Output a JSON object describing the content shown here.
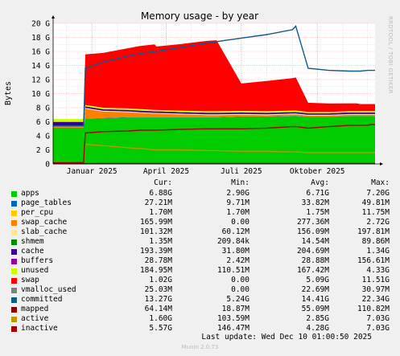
{
  "chart_data": {
    "type": "area",
    "title": "Memory usage - by year",
    "ylabel": "Bytes",
    "xlim": [
      "2024-11-15",
      "2025-12-10"
    ],
    "ylim": [
      0,
      20
    ],
    "yunit": "G",
    "yticks": [
      "0",
      "2 G",
      "4 G",
      "6 G",
      "8 G",
      "10 G",
      "12 G",
      "14 G",
      "16 G",
      "18 G",
      "20 G"
    ],
    "xticks": [
      {
        "date": "2025-01-01",
        "label": "Januar 2025"
      },
      {
        "date": "2025-04-01",
        "label": "April 2025"
      },
      {
        "date": "2025-07-01",
        "label": "Juli 2025"
      },
      {
        "date": "2025-10-01",
        "label": "Oktober 2025"
      }
    ],
    "grid": true,
    "x": [
      "2024-11-15",
      "2024-12-01",
      "2024-12-22",
      "2024-12-24",
      "2025-01-15",
      "2025-02-15",
      "2025-03-01",
      "2025-03-18",
      "2025-03-20",
      "2025-04-15",
      "2025-05-20",
      "2025-06-01",
      "2025-07-01",
      "2025-08-01",
      "2025-09-01",
      "2025-09-05",
      "2025-09-20",
      "2025-10-15",
      "2025-11-10",
      "2025-11-18",
      "2025-11-22",
      "2025-12-01",
      "2025-12-05",
      "2025-12-10"
    ],
    "series": [
      {
        "name": "apps",
        "color": "#00cc00",
        "values": [
          5.1,
          5.1,
          5.1,
          6.4,
          6.5,
          6.6,
          6.6,
          6.6,
          6.6,
          6.6,
          6.6,
          6.6,
          6.7,
          6.7,
          6.8,
          6.8,
          6.7,
          6.7,
          6.8,
          6.8,
          6.8,
          6.8,
          6.8,
          6.8
        ]
      },
      {
        "name": "page_tables",
        "color": "#0066b3",
        "values": [
          0.05,
          0.05,
          0.05,
          0.05,
          0.05,
          0.05,
          0.05,
          0.05,
          0.05,
          0.05,
          0.05,
          0.05,
          0.05,
          0.05,
          0.05,
          0.05,
          0.03,
          0.03,
          0.03,
          0.03,
          0.03,
          0.03,
          0.03,
          0.03
        ]
      },
      {
        "name": "per_cpu",
        "color": "#ffcc00",
        "values": [
          0.002,
          0.002,
          0.002,
          0.002,
          0.002,
          0.002,
          0.002,
          0.002,
          0.002,
          0.002,
          0.002,
          0.002,
          0.002,
          0.002,
          0.002,
          0.002,
          0.002,
          0.002,
          0.002,
          0.002,
          0.002,
          0.002,
          0.002,
          0.002
        ]
      },
      {
        "name": "swap_cache",
        "color": "#ff8000",
        "values": [
          0.2,
          0.2,
          0.2,
          1.4,
          0.9,
          0.7,
          0.6,
          0.5,
          0.5,
          0.4,
          0.3,
          0.3,
          0.25,
          0.2,
          0.2,
          0.2,
          0.15,
          0.15,
          0.16,
          0.16,
          0.16,
          0.16,
          0.16,
          0.16
        ]
      },
      {
        "name": "slab_cache",
        "color": "#ffe6a0",
        "values": [
          0.1,
          0.1,
          0.1,
          0.1,
          0.1,
          0.1,
          0.1,
          0.1,
          0.1,
          0.1,
          0.1,
          0.1,
          0.1,
          0.1,
          0.1,
          0.1,
          0.1,
          0.1,
          0.1,
          0.1,
          0.1,
          0.1,
          0.1,
          0.1
        ]
      },
      {
        "name": "shmem",
        "color": "#008f00",
        "values": [
          0.01,
          0.01,
          0.01,
          0.01,
          0.01,
          0.01,
          0.01,
          0.01,
          0.01,
          0.01,
          0.01,
          0.01,
          0.01,
          0.01,
          0.01,
          0.01,
          0.01,
          0.01,
          0.01,
          0.01,
          0.01,
          0.01,
          0.01,
          0.01
        ]
      },
      {
        "name": "cache",
        "color": "#330099",
        "values": [
          0.5,
          0.5,
          0.5,
          0.2,
          0.2,
          0.2,
          0.2,
          0.2,
          0.2,
          0.2,
          0.2,
          0.2,
          0.2,
          0.2,
          0.2,
          0.2,
          0.2,
          0.2,
          0.2,
          0.2,
          0.2,
          0.2,
          0.2,
          0.2
        ]
      },
      {
        "name": "buffers",
        "color": "#990099",
        "values": [
          0.03,
          0.03,
          0.03,
          0.03,
          0.03,
          0.03,
          0.03,
          0.03,
          0.03,
          0.03,
          0.03,
          0.03,
          0.03,
          0.03,
          0.03,
          0.03,
          0.03,
          0.03,
          0.03,
          0.03,
          0.03,
          0.03,
          0.03,
          0.03
        ]
      },
      {
        "name": "unused",
        "color": "#ccff00",
        "values": [
          0.4,
          0.4,
          0.4,
          0.2,
          0.2,
          0.2,
          0.2,
          0.2,
          0.2,
          0.2,
          0.2,
          0.2,
          0.2,
          0.2,
          0.2,
          0.2,
          0.18,
          0.18,
          0.18,
          0.18,
          0.18,
          0.18,
          0.18,
          0.18
        ]
      },
      {
        "name": "swap",
        "color": "#ff0000",
        "values": [
          0.0,
          0.0,
          0.0,
          7.2,
          7.8,
          8.6,
          9.0,
          9.3,
          9.0,
          9.4,
          10.0,
          10.1,
          3.9,
          4.3,
          4.6,
          4.7,
          1.3,
          1.2,
          1.1,
          1.1,
          1.0,
          1.0,
          1.0,
          1.0
        ]
      }
    ],
    "lines": [
      {
        "name": "vmalloc_used",
        "color": "#808080",
        "values": [
          0.03,
          0.03,
          0.03,
          0.03,
          0.03,
          0.03,
          0.03,
          0.03,
          0.03,
          0.03,
          0.03,
          0.03,
          0.03,
          0.03,
          0.03,
          0.03,
          0.03,
          0.03,
          0.03,
          0.03,
          0.03,
          0.03,
          0.03,
          0.03
        ]
      },
      {
        "name": "committed",
        "color": "#0c5a8c",
        "values": [
          5.4,
          5.4,
          5.4,
          13.6,
          14.5,
          15.4,
          15.7,
          16.0,
          16.0,
          16.5,
          17.2,
          17.4,
          17.9,
          18.4,
          19.1,
          19.6,
          13.6,
          13.3,
          13.2,
          13.2,
          13.2,
          13.3,
          13.3,
          13.3
        ]
      },
      {
        "name": "mapped",
        "color": "#880000",
        "values": [
          0.03,
          0.03,
          0.03,
          0.05,
          0.06,
          0.06,
          0.06,
          0.06,
          0.06,
          0.06,
          0.06,
          0.06,
          0.06,
          0.06,
          0.06,
          0.06,
          0.06,
          0.06,
          0.06,
          0.06,
          0.06,
          0.06,
          0.06,
          0.06
        ]
      },
      {
        "name": "active",
        "color": "#b59b00",
        "values": [
          0.3,
          0.3,
          0.2,
          2.8,
          2.6,
          2.3,
          2.2,
          2.0,
          2.0,
          2.0,
          1.9,
          1.9,
          1.8,
          1.8,
          1.7,
          1.7,
          1.6,
          1.6,
          1.6,
          1.6,
          1.6,
          1.6,
          1.6,
          1.6
        ]
      },
      {
        "name": "inactive",
        "color": "#a00000",
        "values": [
          0.2,
          0.2,
          0.2,
          4.4,
          4.6,
          4.7,
          4.8,
          4.8,
          4.8,
          4.9,
          5.0,
          5.0,
          5.0,
          5.1,
          5.3,
          5.3,
          5.1,
          5.3,
          5.5,
          5.5,
          5.5,
          5.5,
          5.6,
          5.6
        ]
      }
    ]
  },
  "legend": {
    "headers": {
      "cur": "Cur:",
      "min": "Min:",
      "avg": "Avg:",
      "max": "Max:"
    },
    "rows": [
      {
        "name": "apps",
        "color": "#00cc00",
        "cur": "6.88G",
        "min": "2.90G",
        "avg": "6.71G",
        "max": "7.20G"
      },
      {
        "name": "page_tables",
        "color": "#0066b3",
        "cur": "27.21M",
        "min": "9.71M",
        "avg": "33.82M",
        "max": "49.81M"
      },
      {
        "name": "per_cpu",
        "color": "#ffcc00",
        "cur": "1.70M",
        "min": "1.70M",
        "avg": "1.75M",
        "max": "11.75M"
      },
      {
        "name": "swap_cache",
        "color": "#ff8000",
        "cur": "165.99M",
        "min": "0.00",
        "avg": "277.36M",
        "max": "2.72G"
      },
      {
        "name": "slab_cache",
        "color": "#ffe6a0",
        "cur": "101.32M",
        "min": "60.12M",
        "avg": "156.09M",
        "max": "197.81M"
      },
      {
        "name": "shmem",
        "color": "#008f00",
        "cur": "1.35M",
        "min": "209.84k",
        "avg": "14.54M",
        "max": "89.86M"
      },
      {
        "name": "cache",
        "color": "#330099",
        "cur": "193.39M",
        "min": "31.80M",
        "avg": "204.69M",
        "max": "1.34G"
      },
      {
        "name": "buffers",
        "color": "#990099",
        "cur": "28.78M",
        "min": "2.42M",
        "avg": "28.88M",
        "max": "156.61M"
      },
      {
        "name": "unused",
        "color": "#ccff00",
        "cur": "184.95M",
        "min": "110.51M",
        "avg": "167.42M",
        "max": "4.33G"
      },
      {
        "name": "swap",
        "color": "#ff0000",
        "cur": "1.02G",
        "min": "0.00",
        "avg": "5.09G",
        "max": "11.51G"
      },
      {
        "name": "vmalloc_used",
        "color": "#808080",
        "cur": "25.03M",
        "min": "0.00",
        "avg": "22.69M",
        "max": "30.97M"
      },
      {
        "name": "committed",
        "color": "#0c5a8c",
        "cur": "13.27G",
        "min": "5.24G",
        "avg": "14.41G",
        "max": "22.34G"
      },
      {
        "name": "mapped",
        "color": "#880000",
        "cur": "64.14M",
        "min": "18.87M",
        "avg": "55.09M",
        "max": "110.82M"
      },
      {
        "name": "active",
        "color": "#b59b00",
        "cur": "1.60G",
        "min": "103.59M",
        "avg": "2.85G",
        "max": "7.03G"
      },
      {
        "name": "inactive",
        "color": "#a00000",
        "cur": "5.57G",
        "min": "146.47M",
        "avg": "4.28G",
        "max": "7.03G"
      }
    ]
  },
  "footer": "Last update: Wed Dec 10 01:00:50 2025",
  "munin_version": "Munin 2.0.73",
  "watermark": "RRDTOOL / TOBI OETIKER"
}
